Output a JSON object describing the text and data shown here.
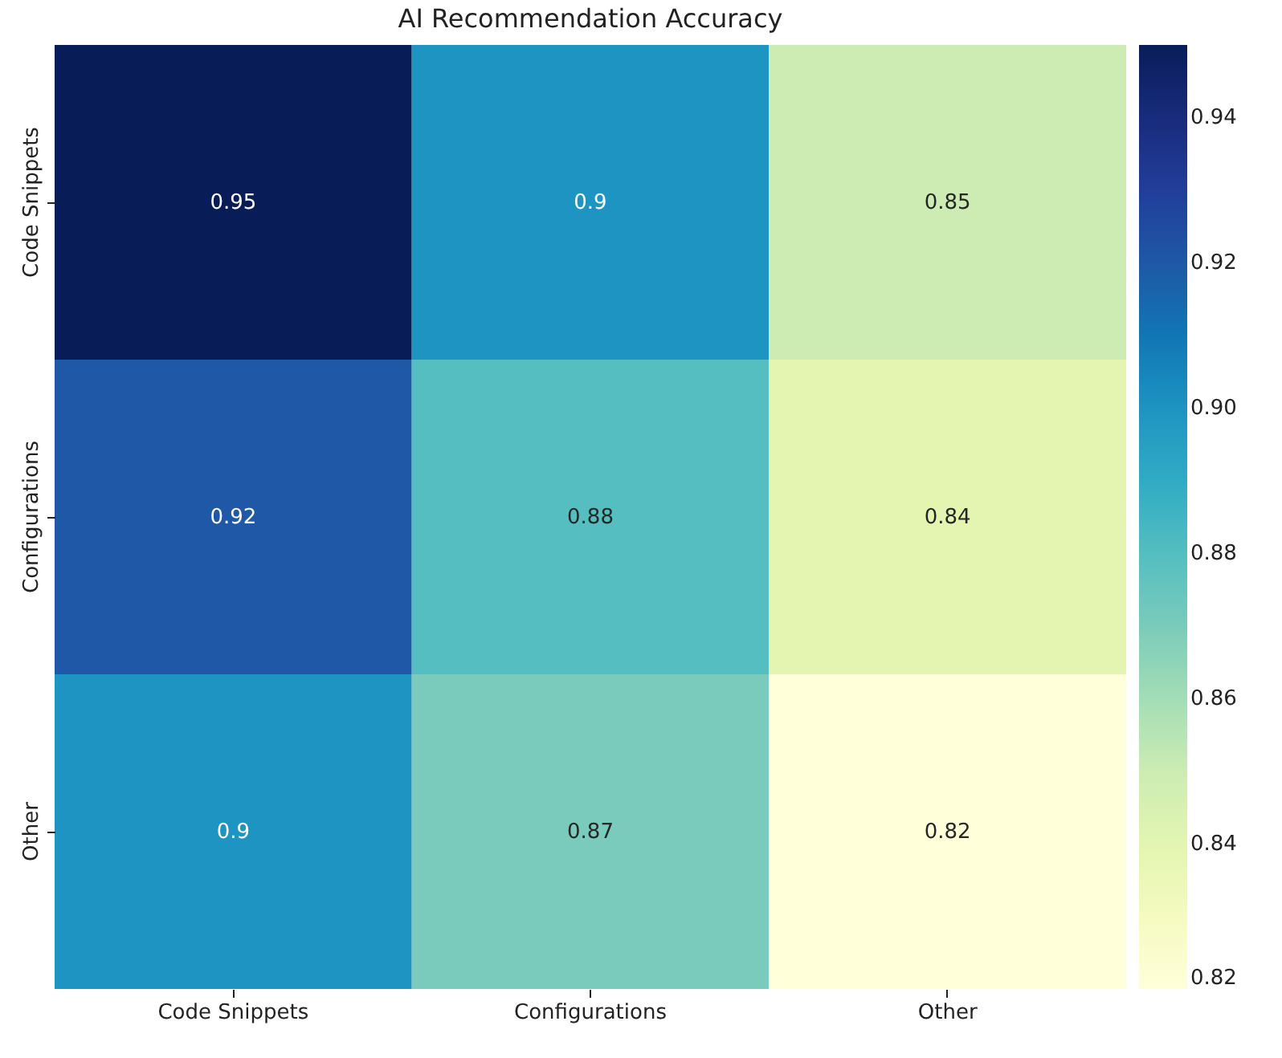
{
  "chart_data": {
    "type": "heatmap",
    "title": "AI Recommendation Accuracy",
    "categories": [
      "Code Snippets",
      "Configurations",
      "Other"
    ],
    "y_categories": [
      "Code Snippets",
      "Configurations",
      "Other"
    ],
    "cells": [
      [
        0.95,
        0.9,
        0.85
      ],
      [
        0.92,
        0.88,
        0.84
      ],
      [
        0.9,
        0.87,
        0.82
      ]
    ],
    "data_labels": true,
    "clim": [
      0.82,
      0.95
    ],
    "cticks": [
      0.82,
      0.84,
      0.86,
      0.88,
      {
        "value": 0.9,
        "label": "0.90"
      },
      0.92,
      0.94
    ]
  }
}
